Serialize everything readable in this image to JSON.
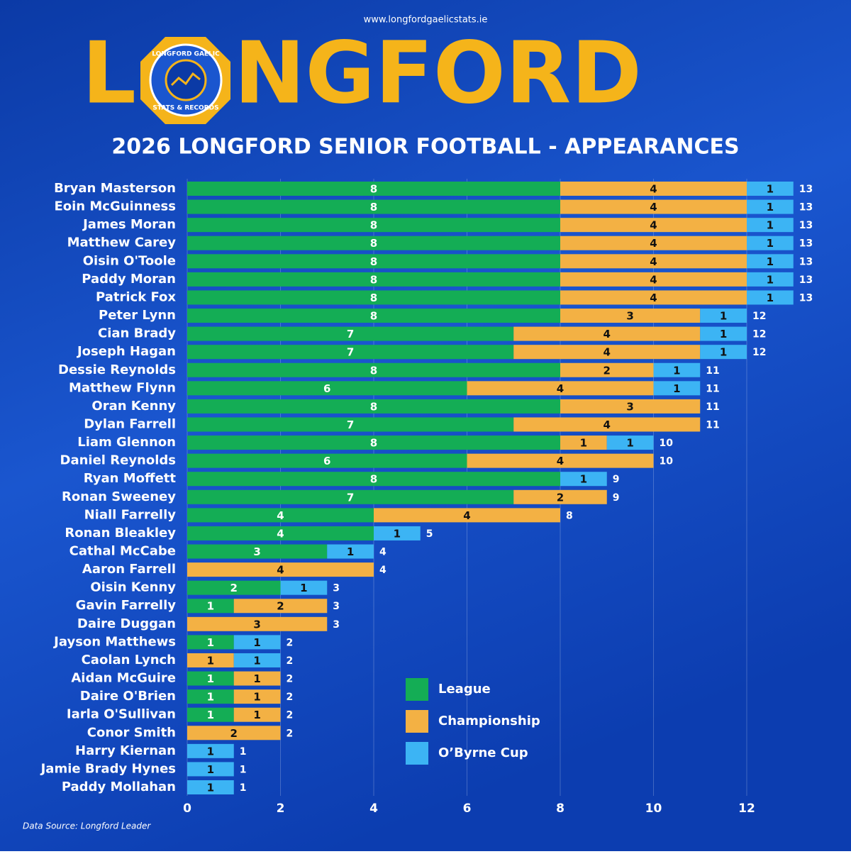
{
  "header": {
    "url": "www.longfordgaelicstats.ie",
    "title_left": "L",
    "title_right": "NGFORD",
    "logo_top": "LONGFORD GAELIC",
    "logo_bottom": "STATS & RECORDS"
  },
  "chart_data": {
    "type": "stacked-barh",
    "title": "2026 LONGFORD SENIOR FOOTBALL - APPEARANCES",
    "categories": [
      "Bryan Masterson",
      "Eoin McGuinness",
      "James Moran",
      "Matthew Carey",
      "Oisin O'Toole",
      "Paddy Moran",
      "Patrick Fox",
      "Peter Lynn",
      "Cian Brady",
      "Joseph Hagan",
      "Dessie Reynolds",
      "Matthew Flynn",
      "Oran Kenny",
      "Dylan Farrell",
      "Liam Glennon",
      "Daniel Reynolds",
      "Ryan Moffett",
      "Ronan Sweeney",
      "Niall Farrelly",
      "Ronan Bleakley",
      "Cathal McCabe",
      "Aaron Farrell",
      "Oisin Kenny",
      "Gavin Farrelly",
      "Daire Duggan",
      "Jayson Matthews",
      "Caolan Lynch",
      "Aidan McGuire",
      "Daire O'Brien",
      "Iarla O'Sullivan",
      "Conor Smith",
      "Harry Kiernan",
      "Jamie Brady Hynes",
      "Paddy Mollahan"
    ],
    "series": [
      {
        "name": "League",
        "color": "#14ad55",
        "values": [
          8,
          8,
          8,
          8,
          8,
          8,
          8,
          8,
          7,
          7,
          8,
          6,
          8,
          7,
          8,
          6,
          8,
          7,
          4,
          4,
          3,
          null,
          2,
          1,
          null,
          1,
          null,
          1,
          1,
          1,
          null,
          null,
          null,
          null
        ]
      },
      {
        "name": "Championship",
        "color": "#f3b144",
        "values": [
          4,
          4,
          4,
          4,
          4,
          4,
          4,
          3,
          4,
          4,
          2,
          4,
          3,
          4,
          1,
          4,
          null,
          2,
          4,
          null,
          null,
          4,
          null,
          2,
          3,
          null,
          1,
          1,
          1,
          1,
          2,
          null,
          null,
          null
        ]
      },
      {
        "name": "O’Byrne Cup",
        "color": "#3cb4f4",
        "values": [
          1,
          1,
          1,
          1,
          1,
          1,
          1,
          1,
          1,
          1,
          1,
          1,
          null,
          null,
          1,
          null,
          1,
          null,
          null,
          1,
          1,
          null,
          1,
          null,
          null,
          1,
          1,
          null,
          null,
          null,
          null,
          1,
          1,
          1
        ]
      }
    ],
    "totals": [
      13,
      13,
      13,
      13,
      13,
      13,
      13,
      12,
      12,
      12,
      11,
      11,
      11,
      11,
      10,
      10,
      9,
      9,
      8,
      5,
      4,
      4,
      3,
      3,
      3,
      2,
      2,
      2,
      2,
      2,
      2,
      1,
      1,
      1
    ],
    "xlim": [
      0,
      13
    ],
    "xticks": [
      0,
      2,
      4,
      6,
      8,
      10,
      12
    ],
    "grid": true,
    "source": "Data Source: Longford Leader"
  }
}
